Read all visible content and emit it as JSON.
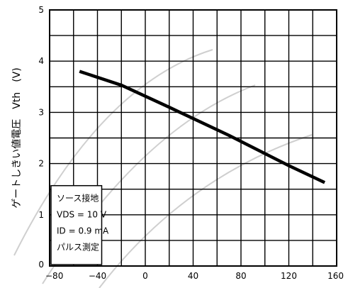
{
  "chart_data": {
    "type": "line",
    "title": "",
    "xlabel": "",
    "ylabel": "ゲートしきい値電圧　Vth　(V)",
    "xlim": [
      -80,
      160
    ],
    "ylim": [
      0,
      5
    ],
    "x_ticks": [
      "−80",
      "−40",
      "0",
      "40",
      "80",
      "120",
      "160"
    ],
    "y_ticks": [
      "0",
      "1",
      "2",
      "3",
      "4",
      "5"
    ],
    "grid": true,
    "legend": "none",
    "series": [
      {
        "x": [
          -55,
          -20,
          20,
          70,
          120,
          150
        ],
        "y": [
          3.8,
          3.53,
          3.1,
          2.55,
          1.96,
          1.63
        ]
      }
    ],
    "annotation": {
      "lines": [
        "ソース接地",
        "VDS = 10 V",
        "ID = 0.9 mA",
        "パルス測定"
      ]
    }
  }
}
